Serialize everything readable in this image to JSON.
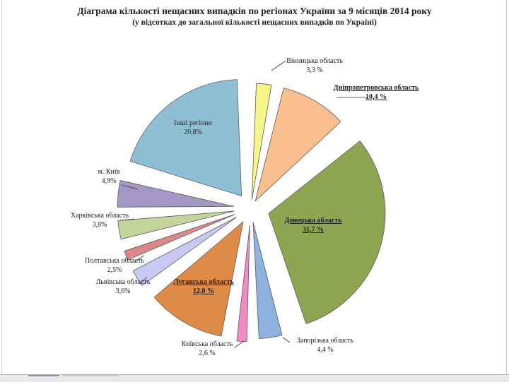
{
  "title": "Діаграма кількості нещасних випадків по регіонах України  за 9 місяців 2014 року",
  "subtitle": "(у відсотках до загальної кількості нещасних випадків по Україні)",
  "chart_data": {
    "type": "pie",
    "title": "Діаграма кількості нещасних випадків по регіонах України  за 9 місяців 2014 року",
    "subtitle": "(у відсотках до загальної кількості нещасних випадків по Україні)",
    "slices": [
      {
        "label": "Вінницька область",
        "value_label": "3,3 %",
        "value": 3.3,
        "color": "#f5f58a",
        "bold": false,
        "underline": false
      },
      {
        "label": "Дніпропетровська область",
        "value_label": "10,4 %",
        "value": 10.4,
        "color": "#f9bf8f",
        "bold": true,
        "underline": true
      },
      {
        "label": "Донецька область",
        "value_label": "31,7 %",
        "value": 31.7,
        "color": "#8ea552",
        "bold": true,
        "underline": true
      },
      {
        "label": "Запорізька область",
        "value_label": "4,4 %",
        "value": 4.4,
        "color": "#8fb1e0",
        "bold": false,
        "underline": false
      },
      {
        "label": "Київська область",
        "value_label": "2,6 %",
        "value": 2.6,
        "color": "#f28ac3",
        "bold": false,
        "underline": false
      },
      {
        "label": "Луганська область",
        "value_label": "12,0 %",
        "value": 12.0,
        "color": "#df8a47",
        "bold": true,
        "underline": true
      },
      {
        "label": "Львівська область",
        "value_label": "3,6%",
        "value": 3.6,
        "color": "#c7c9f3",
        "bold": false,
        "underline": false
      },
      {
        "label": "Полтавська область",
        "value_label": "2,5%",
        "value": 2.5,
        "color": "#d9898a",
        "bold": false,
        "underline": false
      },
      {
        "label": "Харківська область",
        "value_label": "3,8%",
        "value": 3.8,
        "color": "#c3d59b",
        "bold": false,
        "underline": false
      },
      {
        "label": "м. Київ",
        "value_label": "4,9%",
        "value": 4.9,
        "color": "#a597c4",
        "bold": false,
        "underline": false
      },
      {
        "label": "Інші регіони",
        "value_label": "20,8%",
        "value": 20.8,
        "color": "#8fbfd5",
        "bold": false,
        "underline": false
      }
    ]
  }
}
